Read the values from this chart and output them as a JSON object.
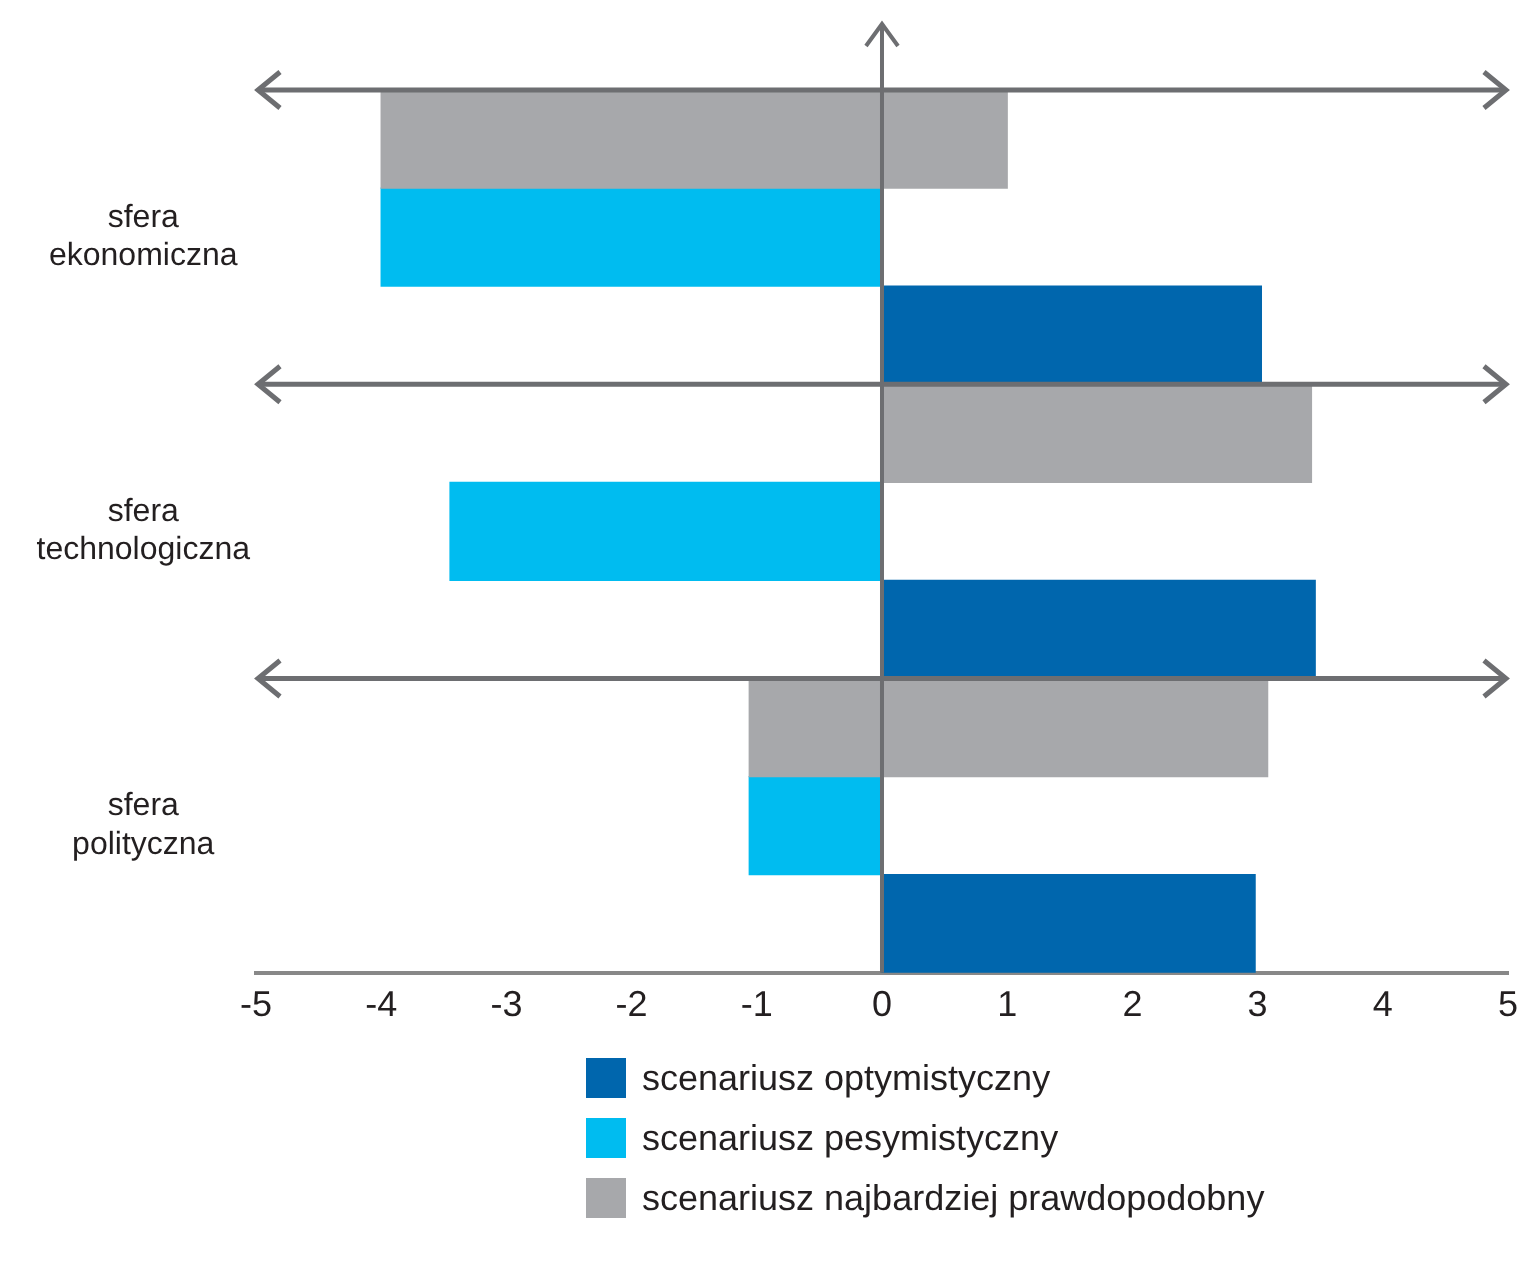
{
  "chart_data": {
    "type": "bar",
    "orientation": "horizontal",
    "categories": [
      "sfera ekonomiczna",
      "sfera technologiczna",
      "sfera polityczna"
    ],
    "series": [
      {
        "name": "scenariusz optymistyczny",
        "color": "#0066ad",
        "values": [
          3.03,
          3.46,
          2.98
        ]
      },
      {
        "name": "scenariusz pesymistyczny",
        "color": "#00bcf0",
        "values": [
          -4,
          -3.45,
          -1.06
        ]
      },
      {
        "name": "scenariusz najbardziej prawdopodobny",
        "color": "#a7a8ab",
        "values": [
          5,
          3.43,
          4.14
        ],
        "base": [
          -4,
          0,
          -1.06
        ]
      }
    ],
    "xlim": [
      -5,
      5
    ],
    "xticks": [
      -5,
      -4,
      -3,
      -2,
      -1,
      0,
      1,
      2,
      3,
      4,
      5
    ],
    "grid": false,
    "legend": "bottom"
  }
}
